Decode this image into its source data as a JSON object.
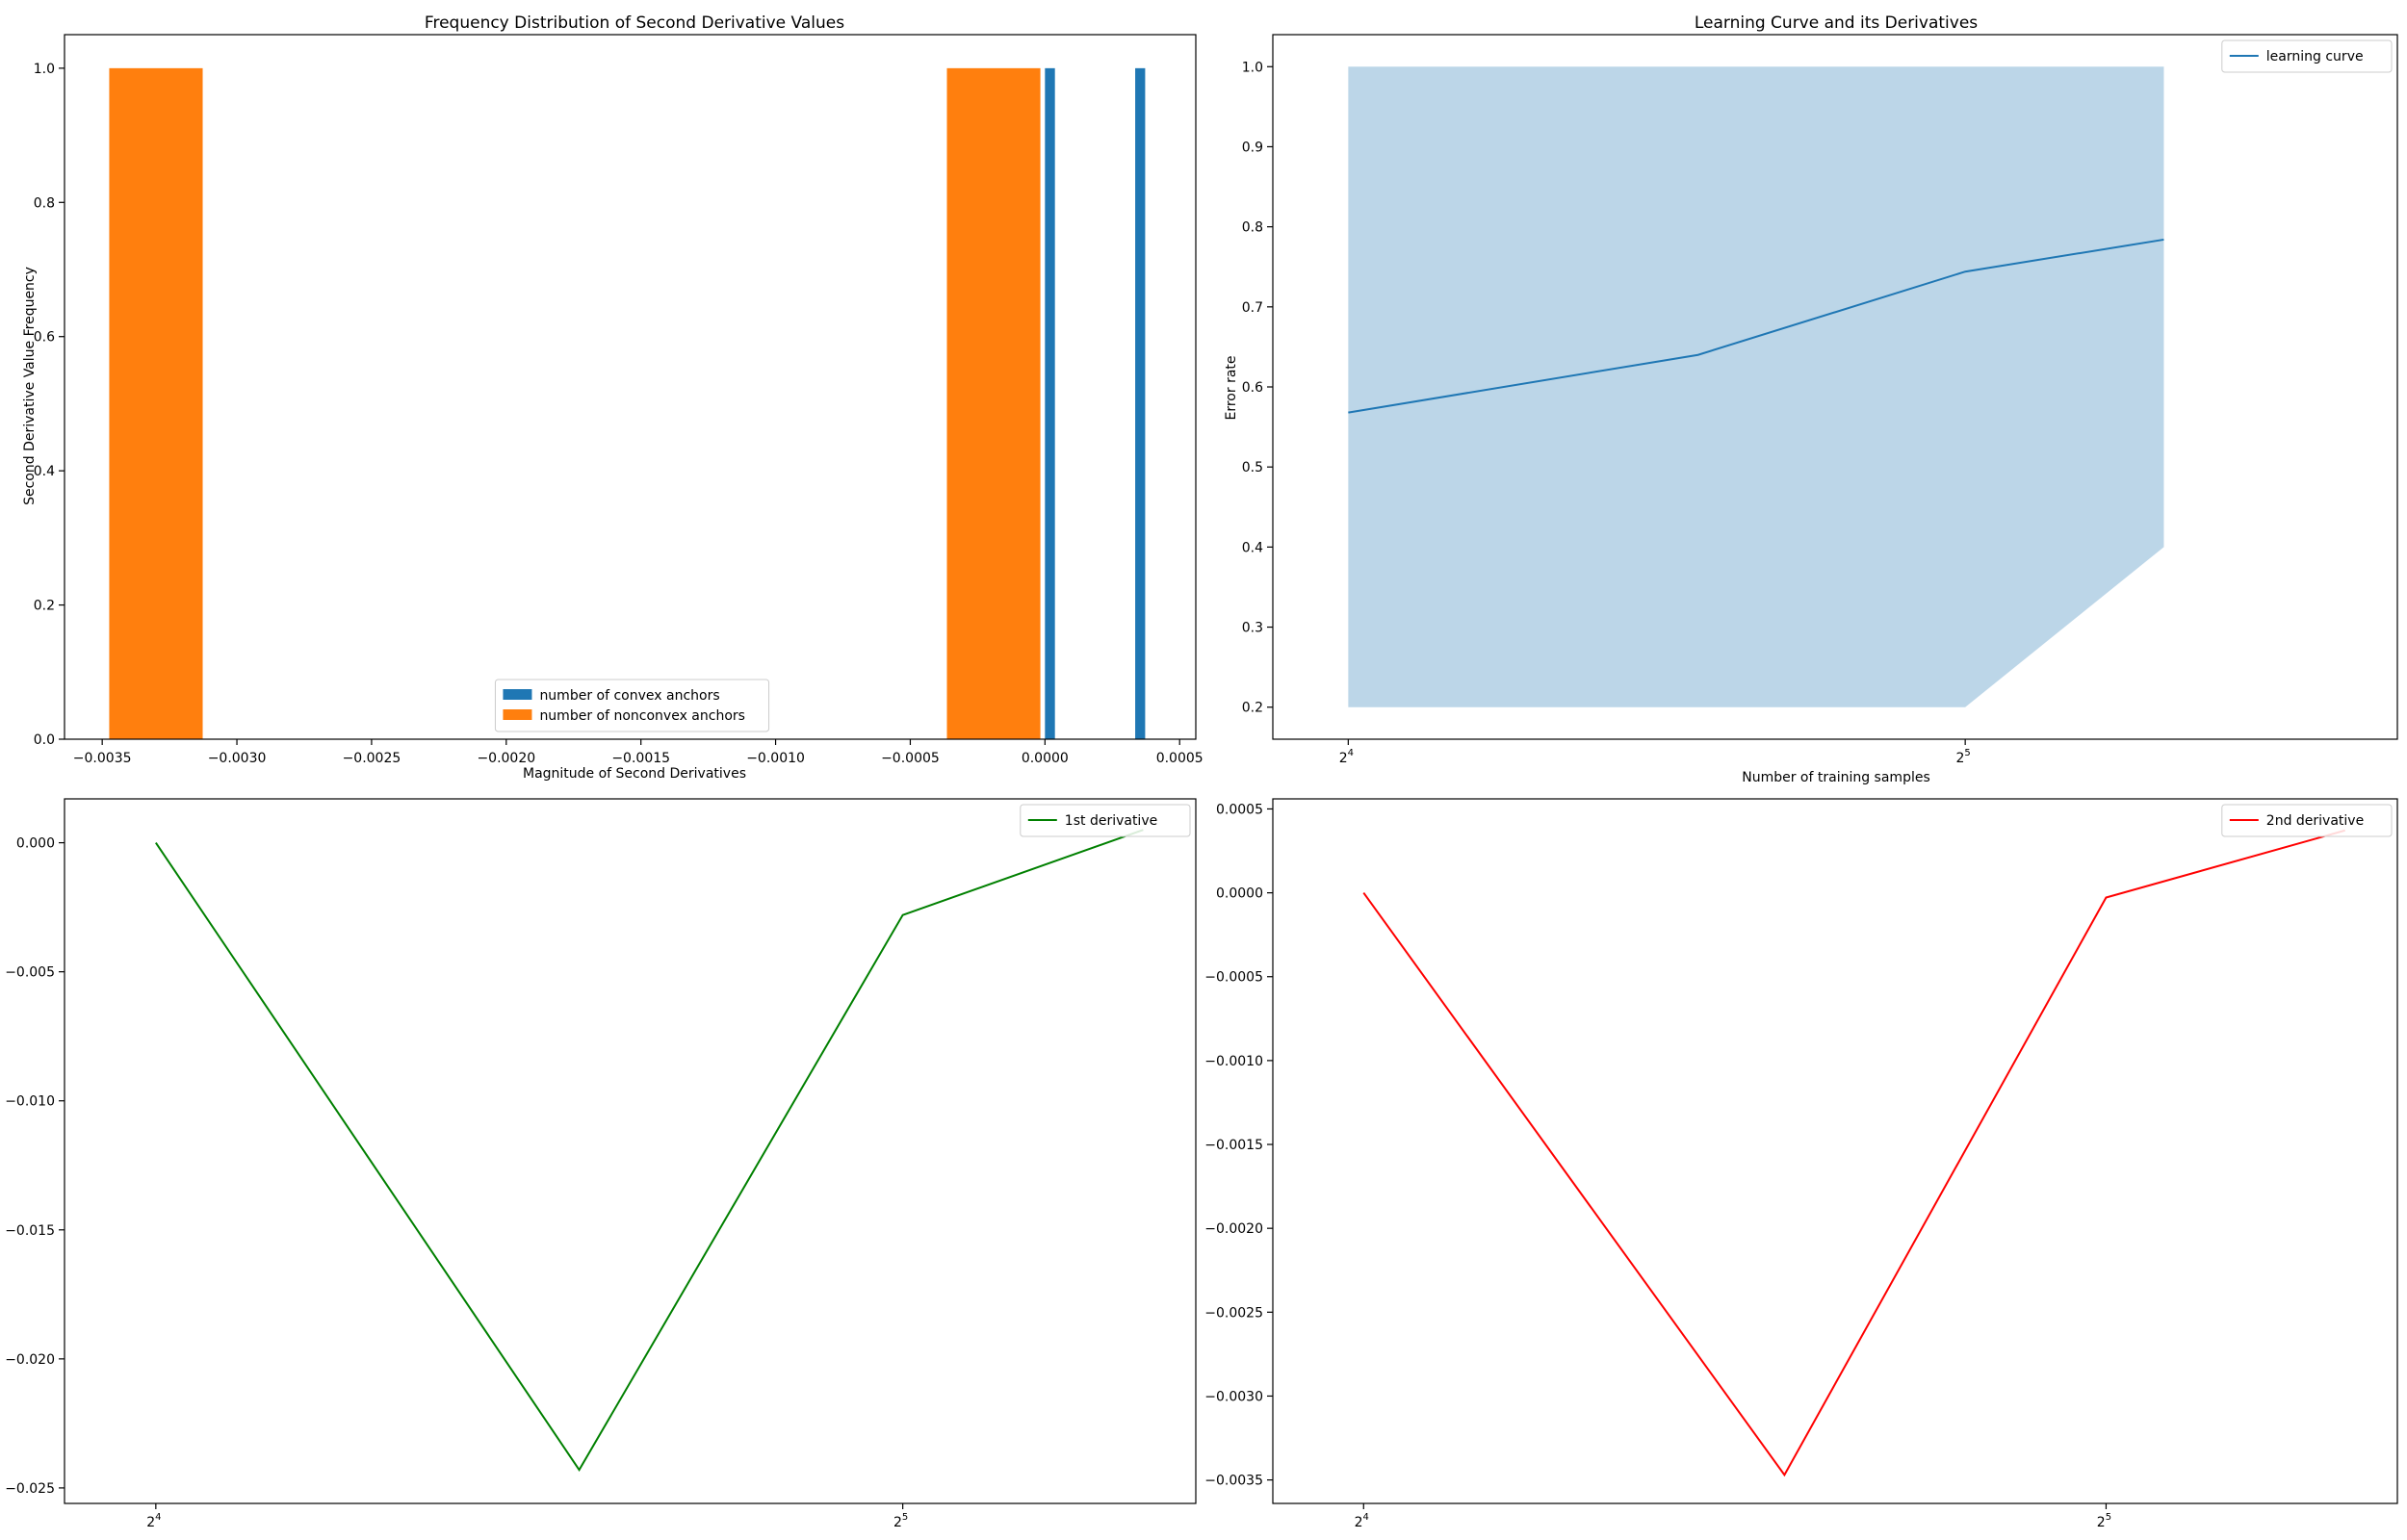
{
  "colors": {
    "convex": "#1f77b4",
    "nonconvex": "#ff7f0e",
    "learning_curve": "#1f77b4",
    "band": "#bcd6e8",
    "first_derivative": "#008000",
    "second_derivative": "#ff0000",
    "axis": "#000000"
  },
  "chart_data": [
    {
      "type": "bar",
      "id": "histogram",
      "title": "Frequency Distribution of Second Derivative Values",
      "xlabel": "Magnitude of Second Derivatives",
      "ylabel": "Second Derivative Value Frequency",
      "xlim": [
        -0.00364,
        0.00056
      ],
      "ylim": [
        0,
        1.05
      ],
      "x_ticks": [
        -0.0035,
        -0.003,
        -0.0025,
        -0.002,
        -0.0015,
        -0.001,
        -0.0005,
        0.0,
        0.0005
      ],
      "x_tick_labels": [
        "−0.0035",
        "−0.0030",
        "−0.0025",
        "−0.0020",
        "−0.0015",
        "−0.0010",
        "−0.0005",
        "0.0000",
        "0.0005"
      ],
      "y_ticks": [
        0.0,
        0.2,
        0.4,
        0.6,
        0.8,
        1.0
      ],
      "y_tick_labels": [
        "0.0",
        "0.2",
        "0.4",
        "0.6",
        "0.8",
        "1.0"
      ],
      "legend": {
        "placement": "lower-center",
        "entries": [
          "number of convex anchors",
          "number of nonconvex anchors"
        ]
      },
      "series": [
        {
          "name": "number of convex anchors",
          "bars": [
            {
              "x0": 0.0,
              "x1": 3.7e-05,
              "value": 1
            },
            {
              "x0": 0.000335,
              "x1": 0.000372,
              "value": 1
            }
          ]
        },
        {
          "name": "number of nonconvex anchors",
          "bars": [
            {
              "x0": -0.003474,
              "x1": -0.003127,
              "value": 1
            },
            {
              "x0": -0.000364,
              "x1": -1.7e-05,
              "value": 1
            }
          ]
        }
      ]
    },
    {
      "type": "line",
      "id": "learning_curve",
      "title": "Learning Curve and its Derivatives",
      "xlabel": "Number of training samples",
      "ylabel": "Error rate",
      "x_scale": "log2",
      "xlim": [
        14.7,
        52.0
      ],
      "ylim": [
        0.16,
        1.04
      ],
      "x_ticks": [
        16,
        32
      ],
      "x_tick_labels": [
        {
          "base": "2",
          "exp": "4"
        },
        {
          "base": "2",
          "exp": "5"
        }
      ],
      "y_ticks": [
        0.2,
        0.3,
        0.4,
        0.5,
        0.6,
        0.7,
        0.8,
        0.9,
        1.0
      ],
      "y_tick_labels": [
        "0.2",
        "0.3",
        "0.4",
        "0.5",
        "0.6",
        "0.7",
        "0.8",
        "0.9",
        "1.0"
      ],
      "legend": {
        "placement": "top-right",
        "entries": [
          "learning curve"
        ]
      },
      "x": [
        16,
        23.7,
        32,
        40
      ],
      "series": [
        {
          "name": "learning curve",
          "values": [
            0.568,
            0.64,
            0.744,
            0.784
          ]
        }
      ],
      "band": {
        "x": [
          16,
          23.7,
          32,
          40
        ],
        "lower": [
          0.2,
          0.2,
          0.2,
          0.4
        ],
        "upper": [
          1.0,
          1.0,
          1.0,
          1.0
        ]
      }
    },
    {
      "type": "line",
      "id": "first_derivative",
      "title": "",
      "xlabel": "",
      "ylabel": "",
      "x_scale": "log2",
      "xlim": [
        14.7,
        42.0
      ],
      "ylim": [
        -0.0256,
        0.0017
      ],
      "x_ticks": [
        16,
        32
      ],
      "x_tick_labels": [
        {
          "base": "2",
          "exp": "4"
        },
        {
          "base": "2",
          "exp": "5"
        }
      ],
      "y_ticks": [
        0.0,
        -0.005,
        -0.01,
        -0.015,
        -0.02,
        -0.025
      ],
      "y_tick_labels": [
        "0.000",
        "−0.005",
        "−0.010",
        "−0.015",
        "−0.020",
        "−0.025"
      ],
      "legend": {
        "placement": "top-right",
        "entries": [
          "1st derivative"
        ]
      },
      "x": [
        16,
        23.7,
        32,
        40
      ],
      "series": [
        {
          "name": "1st derivative",
          "values": [
            0.0,
            -0.0243,
            -0.0028,
            0.0005
          ]
        }
      ]
    },
    {
      "type": "line",
      "id": "second_derivative",
      "title": "",
      "xlabel": "",
      "ylabel": "",
      "x_scale": "log2",
      "xlim": [
        14.7,
        42.0
      ],
      "ylim": [
        -0.00364,
        0.00056
      ],
      "x_ticks": [
        16,
        32
      ],
      "x_tick_labels": [
        {
          "base": "2",
          "exp": "4"
        },
        {
          "base": "2",
          "exp": "5"
        }
      ],
      "y_ticks": [
        0.0005,
        0.0,
        -0.0005,
        -0.001,
        -0.0015,
        -0.002,
        -0.0025,
        -0.003,
        -0.0035
      ],
      "y_tick_labels": [
        "0.0005",
        "0.0000",
        "−0.0005",
        "−0.0010",
        "−0.0015",
        "−0.0020",
        "−0.0025",
        "−0.0030",
        "−0.0035"
      ],
      "legend": {
        "placement": "top-right",
        "entries": [
          "2nd derivative"
        ]
      },
      "x": [
        16,
        23.7,
        32,
        40
      ],
      "series": [
        {
          "name": "2nd derivative",
          "values": [
            0.0,
            -0.00347,
            -2.8e-05,
            0.000372
          ]
        }
      ]
    }
  ]
}
